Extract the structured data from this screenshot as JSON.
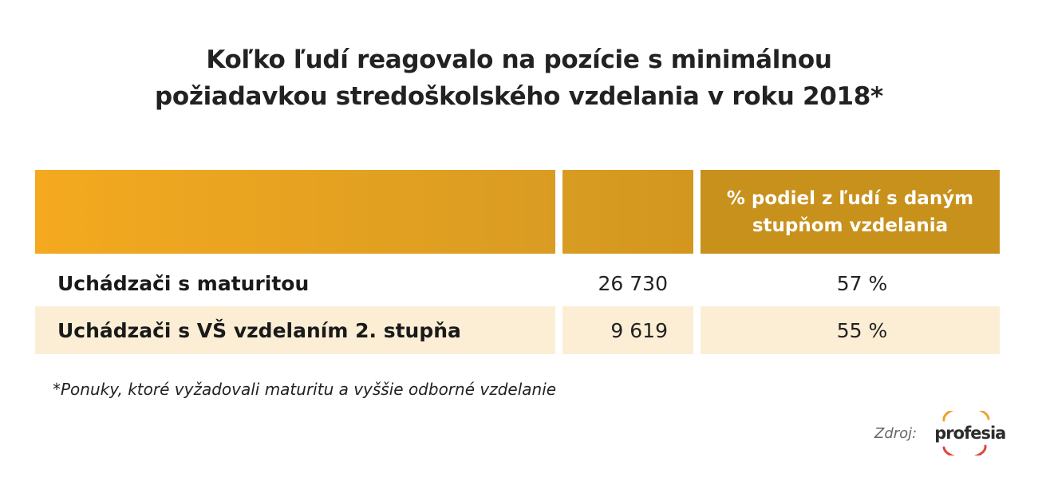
{
  "title": {
    "line1": "Koľko ľudí reagovalo na pozície s minimálnou",
    "line2": "požiadavkou stredoškolského vzdelania v roku 2018*"
  },
  "table": {
    "header": {
      "col1": "",
      "col2": "",
      "col3_line1": "% podiel z ľudí s daným",
      "col3_line2": "stupňom vzdelania"
    },
    "rows": [
      {
        "label": "Uchádzači s maturitou",
        "count": "26 730",
        "share": "57 %"
      },
      {
        "label": "Uchádzači s VŠ vzdelaním 2. stupňa",
        "count": "9 619",
        "share": "55 %"
      }
    ]
  },
  "footnote": "*Ponuky, ktoré vyžadovali maturitu a vyššie odborné vzdelanie",
  "source": {
    "label": "Zdroj:",
    "logo_text": "profesia",
    "logo_icon": "profesia-logo-icon"
  },
  "colors": {
    "header_left": "#f4a91f",
    "header_right": "#c8911c",
    "row_highlight": "#fbeed5",
    "logo_orange": "#f0a030",
    "logo_red": "#e0463a"
  }
}
